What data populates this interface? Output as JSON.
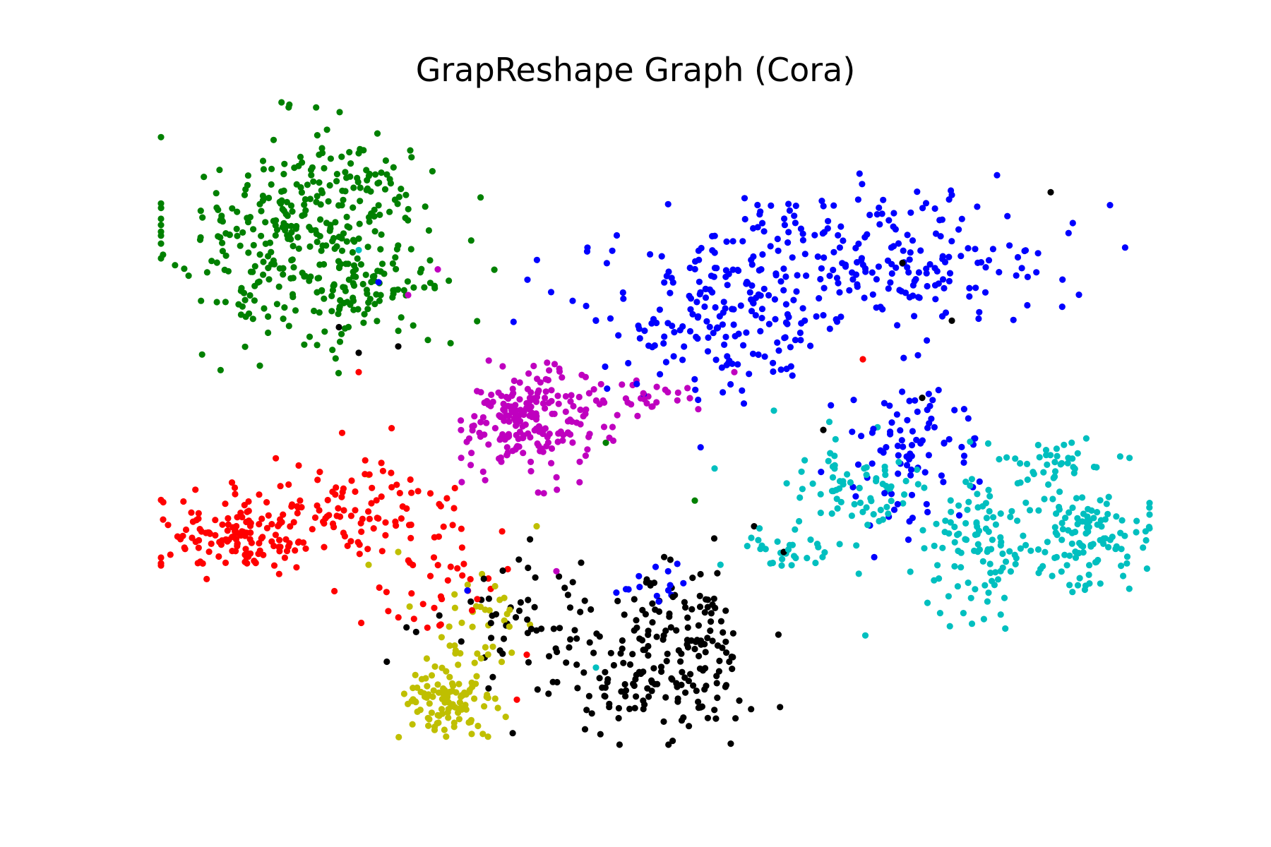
{
  "chart_data": {
    "type": "scatter",
    "title": "GrapReshape Graph (Cora)",
    "xlabel": "",
    "ylabel": "",
    "axes_visible": false,
    "grid": false,
    "legend": "none",
    "seed": 20240611,
    "series": [
      {
        "color": "#008000",
        "clusters": [
          {
            "cx": 0.13,
            "cy": 0.79,
            "sx": 0.06,
            "sy": 0.08,
            "n": 260
          },
          {
            "cx": 0.21,
            "cy": 0.72,
            "sx": 0.05,
            "sy": 0.06,
            "n": 90
          },
          {
            "cx": 0.2,
            "cy": 0.88,
            "sx": 0.04,
            "sy": 0.04,
            "n": 60
          }
        ],
        "outliers": [
          [
            0.27,
            0.63
          ],
          [
            0.1,
            0.59
          ],
          [
            0.45,
            0.47
          ],
          [
            0.54,
            0.38
          ]
        ]
      },
      {
        "color": "#0000ff",
        "clusters": [
          {
            "cx": 0.56,
            "cy": 0.66,
            "sx": 0.07,
            "sy": 0.06,
            "n": 170
          },
          {
            "cx": 0.72,
            "cy": 0.76,
            "sx": 0.09,
            "sy": 0.05,
            "n": 230
          },
          {
            "cx": 0.76,
            "cy": 0.46,
            "sx": 0.04,
            "sy": 0.06,
            "n": 90
          },
          {
            "cx": 0.5,
            "cy": 0.25,
            "sx": 0.02,
            "sy": 0.02,
            "n": 14
          }
        ],
        "outliers": [
          [
            0.96,
            0.84
          ],
          [
            0.44,
            0.66
          ],
          [
            0.22,
            0.72
          ],
          [
            0.31,
            0.24
          ]
        ]
      },
      {
        "color": "#bf00bf",
        "clusters": [
          {
            "cx": 0.37,
            "cy": 0.5,
            "sx": 0.03,
            "sy": 0.04,
            "n": 200
          },
          {
            "cx": 0.46,
            "cy": 0.54,
            "sx": 0.04,
            "sy": 0.02,
            "n": 40
          }
        ],
        "outliers": [
          [
            0.25,
            0.7
          ],
          [
            0.28,
            0.74
          ],
          [
            0.4,
            0.27
          ],
          [
            0.58,
            0.58
          ]
        ]
      },
      {
        "color": "#ff0000",
        "clusters": [
          {
            "cx": 0.08,
            "cy": 0.33,
            "sx": 0.04,
            "sy": 0.03,
            "n": 140
          },
          {
            "cx": 0.2,
            "cy": 0.36,
            "sx": 0.05,
            "sy": 0.04,
            "n": 90
          },
          {
            "cx": 0.28,
            "cy": 0.26,
            "sx": 0.04,
            "sy": 0.05,
            "n": 40
          }
        ],
        "outliers": [
          [
            0.2,
            0.58
          ],
          [
            0.71,
            0.6
          ],
          [
            0.37,
            0.14
          ],
          [
            0.36,
            0.07
          ]
        ]
      },
      {
        "color": "#00bfbf",
        "clusters": [
          {
            "cx": 0.83,
            "cy": 0.31,
            "sx": 0.03,
            "sy": 0.05,
            "n": 100
          },
          {
            "cx": 0.93,
            "cy": 0.32,
            "sx": 0.04,
            "sy": 0.04,
            "n": 120
          },
          {
            "cx": 0.9,
            "cy": 0.44,
            "sx": 0.03,
            "sy": 0.02,
            "n": 40
          },
          {
            "cx": 0.7,
            "cy": 0.4,
            "sx": 0.04,
            "sy": 0.04,
            "n": 70
          },
          {
            "cx": 0.63,
            "cy": 0.3,
            "sx": 0.02,
            "sy": 0.02,
            "n": 30
          }
        ],
        "outliers": [
          [
            0.56,
            0.43
          ],
          [
            0.2,
            0.77
          ],
          [
            0.44,
            0.12
          ],
          [
            0.62,
            0.52
          ]
        ]
      },
      {
        "color": "#bfbf00",
        "clusters": [
          {
            "cx": 0.29,
            "cy": 0.06,
            "sx": 0.025,
            "sy": 0.03,
            "n": 100
          },
          {
            "cx": 0.32,
            "cy": 0.18,
            "sx": 0.03,
            "sy": 0.05,
            "n": 40
          }
        ],
        "outliers": [
          [
            0.21,
            0.42
          ],
          [
            0.38,
            0.34
          ],
          [
            0.21,
            0.28
          ],
          [
            0.24,
            0.3
          ]
        ]
      },
      {
        "color": "#000000",
        "clusters": [
          {
            "cx": 0.52,
            "cy": 0.14,
            "sx": 0.04,
            "sy": 0.07,
            "n": 160
          },
          {
            "cx": 0.38,
            "cy": 0.18,
            "sx": 0.05,
            "sy": 0.05,
            "n": 70
          },
          {
            "cx": 0.46,
            "cy": 0.1,
            "sx": 0.03,
            "sy": 0.03,
            "n": 30
          }
        ],
        "outliers": [
          [
            0.6,
            0.34
          ],
          [
            0.63,
            0.3
          ],
          [
            0.24,
            0.62
          ],
          [
            0.75,
            0.75
          ],
          [
            0.8,
            0.66
          ],
          [
            0.9,
            0.86
          ],
          [
            0.2,
            0.61
          ],
          [
            0.18,
            0.65
          ],
          [
            0.67,
            0.49
          ],
          [
            0.77,
            0.54
          ]
        ]
      }
    ]
  }
}
